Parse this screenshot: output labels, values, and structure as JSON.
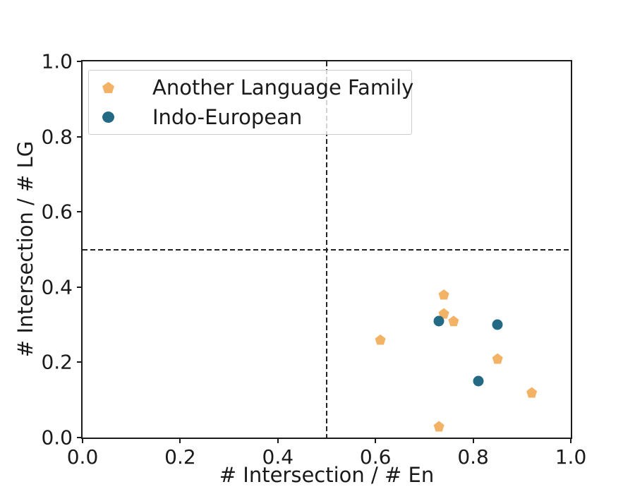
{
  "figure": {
    "background": "#ffffff",
    "spine_color": "#1a1a1a"
  },
  "chart_data": {
    "type": "scatter",
    "title": "",
    "xlabel": "# Intersection / # En",
    "ylabel": "# Intersection / # LG",
    "xlim": [
      0.0,
      1.0
    ],
    "ylim": [
      0.0,
      1.0
    ],
    "x_ticks": [
      "0.0",
      "0.2",
      "0.4",
      "0.6",
      "0.8",
      "1.0"
    ],
    "y_ticks": [
      "0.0",
      "0.2",
      "0.4",
      "0.6",
      "0.8",
      "1.0"
    ],
    "grid": false,
    "reference_lines": {
      "vertical_x": 0.5,
      "horizontal_y": 0.5,
      "style": "dashed",
      "color": "#222222"
    },
    "legend": {
      "position": "upper left",
      "entries": [
        "Another Language Family",
        "Indo-European"
      ]
    },
    "series": [
      {
        "name": "Another Language Family",
        "marker": "pentagon",
        "color": "#F2B366",
        "points": [
          [
            0.74,
            0.38
          ],
          [
            0.74,
            0.33
          ],
          [
            0.76,
            0.31
          ],
          [
            0.61,
            0.26
          ],
          [
            0.85,
            0.21
          ],
          [
            0.92,
            0.12
          ],
          [
            0.73,
            0.03
          ]
        ]
      },
      {
        "name": "Indo-European",
        "marker": "circle",
        "color": "#256A84",
        "points": [
          [
            0.73,
            0.31
          ],
          [
            0.85,
            0.3
          ],
          [
            0.81,
            0.15
          ]
        ]
      }
    ]
  }
}
